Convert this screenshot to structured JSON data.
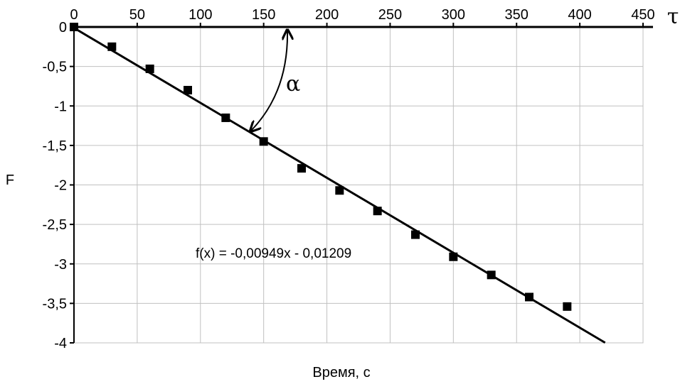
{
  "chart_data": {
    "type": "scatter",
    "xlabel": "Время, с",
    "ylabel": "F",
    "xlim": [
      0,
      450
    ],
    "ylim": [
      -4,
      0
    ],
    "x_ticks": [
      0,
      50,
      100,
      150,
      200,
      250,
      300,
      350,
      400,
      450
    ],
    "y_ticks": [
      0,
      -0.5,
      -1,
      -1.5,
      -2,
      -2.5,
      -3,
      -3.5,
      -4
    ],
    "x_tick_labels": [
      "0",
      "50",
      "100",
      "150",
      "200",
      "250",
      "300",
      "350",
      "400",
      "450"
    ],
    "y_tick_labels": [
      "0",
      "-0,5",
      "-1",
      "-1,5",
      "-2",
      "-2,5",
      "-3",
      "-3,5",
      "-4"
    ],
    "x_axis_position": "top",
    "grid": true,
    "legend": "none",
    "series": [
      {
        "values": [
          {
            "x": 0,
            "y": 0
          },
          {
            "x": 30,
            "y": -0.25
          },
          {
            "x": 60,
            "y": -0.53
          },
          {
            "x": 90,
            "y": -0.8
          },
          {
            "x": 120,
            "y": -1.15
          },
          {
            "x": 150,
            "y": -1.45
          },
          {
            "x": 180,
            "y": -1.79
          },
          {
            "x": 210,
            "y": -2.07
          },
          {
            "x": 240,
            "y": -2.33
          },
          {
            "x": 270,
            "y": -2.63
          },
          {
            "x": 300,
            "y": -2.91
          },
          {
            "x": 330,
            "y": -3.14
          },
          {
            "x": 360,
            "y": -3.42
          },
          {
            "x": 390,
            "y": -3.54
          }
        ]
      }
    ],
    "trendline": {
      "slope": -0.00949,
      "intercept": -0.01209,
      "x_range": [
        0,
        420
      ],
      "equation": "f(x) = -0,00949x - 0,01209"
    },
    "annotations": {
      "x_axis_symbol": "τ",
      "angle_symbol": "α"
    },
    "colors": {
      "markers": "#000000",
      "line": "#000000",
      "grid": "#c0c0c0",
      "background": "#ffffff"
    }
  }
}
